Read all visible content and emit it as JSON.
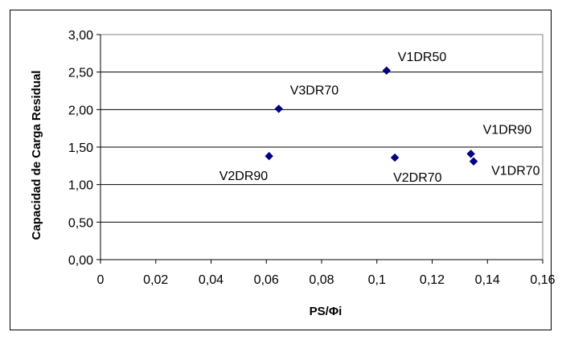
{
  "chart_data": {
    "type": "scatter",
    "title": "",
    "xlabel": "PS/Φi",
    "ylabel": "Capacidad de Carga Residual",
    "xlim": [
      0,
      0.16
    ],
    "ylim": [
      0,
      3.0
    ],
    "x_ticks": [
      "0",
      "0,02",
      "0,04",
      "0,06",
      "0,08",
      "0,1",
      "0,12",
      "0,14",
      "0,16"
    ],
    "y_ticks": [
      "0,00",
      "0,50",
      "1,00",
      "1,50",
      "2,00",
      "2,50",
      "3,00"
    ],
    "grid": "horizontal",
    "legend": "none",
    "marker_color": "#000080",
    "points": [
      {
        "label": "V1DR50",
        "x": 0.1035,
        "y": 2.52
      },
      {
        "label": "V3DR70",
        "x": 0.0645,
        "y": 2.01
      },
      {
        "label": "V2DR90",
        "x": 0.061,
        "y": 1.38
      },
      {
        "label": "V2DR70",
        "x": 0.1065,
        "y": 1.36
      },
      {
        "label": "V1DR90",
        "x": 0.134,
        "y": 1.41
      },
      {
        "label": "V1DR70",
        "x": 0.135,
        "y": 1.31
      }
    ]
  }
}
